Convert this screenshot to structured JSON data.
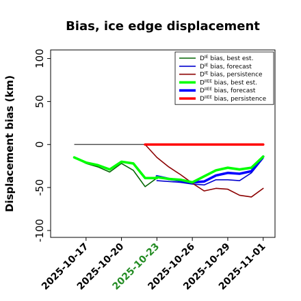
{
  "chart_data": {
    "type": "line",
    "title": "Bias, ice edge displacement",
    "ylabel": "Displacement bias (km)",
    "xlabel": "",
    "ylim": [
      -108,
      110
    ],
    "yticks": [
      100,
      50,
      0,
      -50,
      -100
    ],
    "ytick_labels": [
      "100",
      "50",
      "0",
      "-50",
      "-100"
    ],
    "xlim": [
      "2025-10-14",
      "2025-11-02"
    ],
    "xticks": [
      "2025-10-17",
      "2025-10-20",
      "2025-10-23",
      "2025-10-26",
      "2025-10-29",
      "2025-11-01"
    ],
    "xtick_labels": [
      "2025-10-17",
      "2025-10-20",
      "2025-10-23",
      "2025-10-26",
      "2025-10-29",
      "2025-11-01"
    ],
    "xtick_colors": [
      "#000000",
      "#000000",
      "#228B22",
      "#000000",
      "#000000",
      "#000000"
    ],
    "zero_line": {
      "y": 0,
      "x_start": "2025-10-16",
      "x_end": "2025-11-01",
      "color": "#555555"
    },
    "legend": {
      "placement": "top-right"
    },
    "series": [
      {
        "name_main": "D",
        "name_sup": "IE",
        "name_rest": " bias, best est.",
        "color": "#006400",
        "width": 1.6,
        "x": [
          "2025-10-16",
          "2025-10-17",
          "2025-10-18",
          "2025-10-19",
          "2025-10-20",
          "2025-10-21",
          "2025-10-22",
          "2025-10-23"
        ],
        "values": [
          -15,
          -22,
          -26,
          -32,
          -22,
          -30,
          -49,
          -39
        ]
      },
      {
        "name_main": "D",
        "name_sup": "IE",
        "name_rest": " bias, forecast",
        "color": "#0000cd",
        "width": 1.6,
        "x": [
          "2025-10-23",
          "2025-10-24",
          "2025-10-25",
          "2025-10-26",
          "2025-10-27",
          "2025-10-28",
          "2025-10-29",
          "2025-10-30",
          "2025-10-31",
          "2025-11-01"
        ],
        "values": [
          -42,
          -43,
          -44,
          -46,
          -47,
          -41,
          -41,
          -42,
          -33,
          -16
        ]
      },
      {
        "name_main": "D",
        "name_sup": "IE",
        "name_rest": " bias, persistence",
        "color": "#8b0000",
        "width": 1.6,
        "x": [
          "2025-10-22",
          "2025-10-23",
          "2025-10-24",
          "2025-10-25",
          "2025-10-26",
          "2025-10-27",
          "2025-10-28",
          "2025-10-29",
          "2025-10-30",
          "2025-10-31",
          "2025-11-01"
        ],
        "values": [
          0,
          -15,
          -26,
          -35,
          -45,
          -54,
          -51,
          -52,
          -59,
          -61,
          -51
        ]
      },
      {
        "name_main": "D",
        "name_sup": "IIEE",
        "name_rest": " bias, best est.",
        "color": "#00ff00",
        "width": 3.6,
        "x": [
          "2025-10-16",
          "2025-10-17",
          "2025-10-18",
          "2025-10-19",
          "2025-10-20",
          "2025-10-21",
          "2025-10-22",
          "2025-10-23"
        ],
        "values": [
          -15,
          -21,
          -24,
          -29,
          -20,
          -22,
          -39,
          -39
        ]
      },
      {
        "name_main": "D",
        "name_sup": "IIEE",
        "name_rest": " bias, forecast",
        "color": "#0000ff",
        "width": 3.6,
        "x": [
          "2025-10-23",
          "2025-10-24",
          "2025-10-25",
          "2025-10-26",
          "2025-10-27",
          "2025-10-28",
          "2025-10-29",
          "2025-10-30",
          "2025-10-31",
          "2025-11-01"
        ],
        "values": [
          -37,
          -40,
          -42,
          -44,
          -43,
          -36,
          -33,
          -34,
          -31,
          -14
        ]
      },
      {
        "name_main": "D",
        "name_sup": "IIEE",
        "name_rest": " bias, persistence",
        "color": "#ff0000",
        "width": 3.6,
        "x": [
          "2025-10-22",
          "2025-10-23",
          "2025-10-24",
          "2025-10-25",
          "2025-10-26",
          "2025-10-27",
          "2025-10-28",
          "2025-10-29",
          "2025-10-30",
          "2025-10-31",
          "2025-11-01"
        ],
        "values": [
          0,
          0,
          0,
          0,
          0,
          0,
          0,
          0,
          0,
          0,
          0
        ]
      },
      {
        "name_main": "",
        "name_sup": "",
        "name_rest": "",
        "color": "#00ff00",
        "width": 3.6,
        "legend": false,
        "x": [
          "2025-10-23",
          "2025-10-24",
          "2025-10-25",
          "2025-10-26",
          "2025-10-27",
          "2025-10-28",
          "2025-10-29",
          "2025-10-30",
          "2025-10-31",
          "2025-11-01"
        ],
        "values": [
          -38,
          -40,
          -41,
          -44,
          -37,
          -30,
          -27,
          -29,
          -27,
          -14
        ]
      }
    ]
  }
}
